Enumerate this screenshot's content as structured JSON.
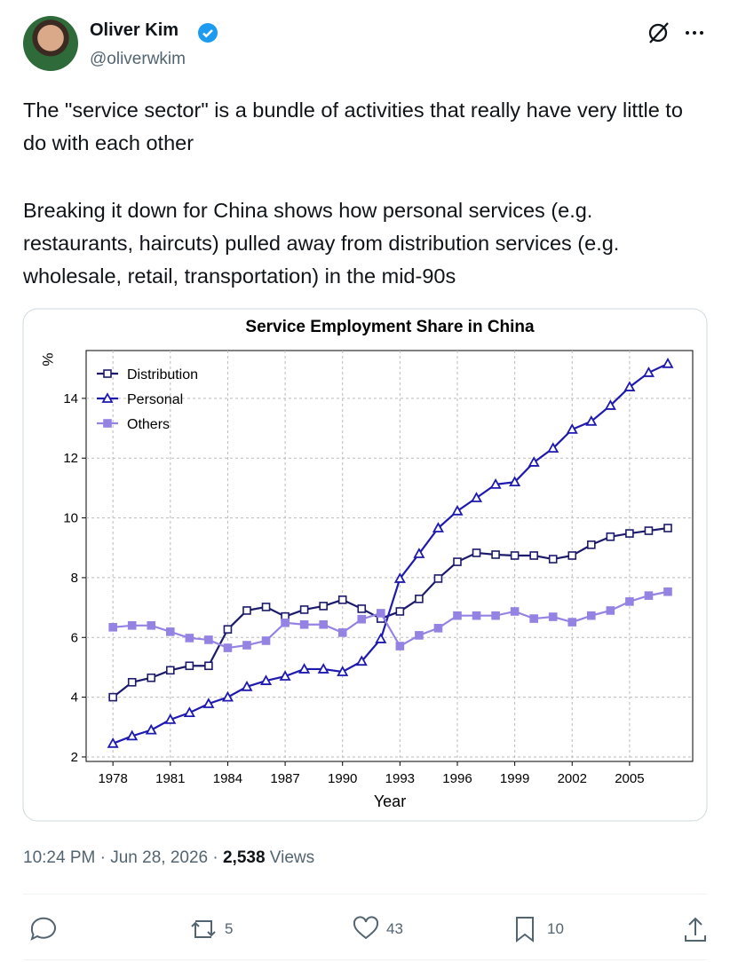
{
  "author": {
    "name": "Oliver Kim",
    "handle": "@oliverwkim"
  },
  "post": {
    "paragraphs": [
      "The \"service sector\" is a bundle of activities that really have very little to do with each other",
      "Breaking it down for China shows how personal services (e.g. restaurants, haircuts) pulled away from distribution services (e.g. wholesale, retail, transportation) in the mid-90s"
    ]
  },
  "meta": {
    "timestamp": "10:24 PM · Jun 28, 2026 ·",
    "views_count": "2,538",
    "views_label": "Views"
  },
  "actions": {
    "reposts": 5,
    "likes": 43,
    "bookmarks": 10
  },
  "chart_data": {
    "type": "line",
    "title": "Service Employment Share in China",
    "xlabel": "Year",
    "ylabel": "%",
    "x": [
      1978,
      1979,
      1980,
      1981,
      1982,
      1983,
      1984,
      1985,
      1986,
      1987,
      1988,
      1989,
      1990,
      1991,
      1992,
      1993,
      1994,
      1995,
      1996,
      1997,
      1998,
      1999,
      2000,
      2001,
      2002,
      2003,
      2004,
      2005,
      2006,
      2007
    ],
    "series": [
      {
        "name": "Distribution",
        "color": "#1b1a6b",
        "marker": "square-open",
        "values": [
          4.0,
          4.5,
          4.65,
          4.9,
          5.05,
          5.05,
          6.27,
          6.9,
          7.02,
          6.7,
          6.93,
          7.05,
          7.26,
          6.96,
          6.63,
          6.87,
          7.29,
          7.97,
          8.53,
          8.83,
          8.77,
          8.74,
          8.74,
          8.62,
          8.74,
          9.1,
          9.37,
          9.48,
          9.57,
          9.66
        ]
      },
      {
        "name": "Personal",
        "color": "#1e1ab0",
        "marker": "triangle-open",
        "values": [
          2.45,
          2.7,
          2.9,
          3.25,
          3.48,
          3.78,
          4.0,
          4.35,
          4.55,
          4.7,
          4.94,
          4.94,
          4.85,
          5.2,
          5.95,
          7.97,
          8.8,
          9.66,
          10.23,
          10.67,
          11.12,
          11.2,
          11.86,
          12.33,
          12.96,
          13.23,
          13.76,
          14.38,
          14.86,
          15.16
        ]
      },
      {
        "name": "Others",
        "color": "#9583e3",
        "marker": "square",
        "values": [
          6.34,
          6.4,
          6.4,
          6.19,
          5.98,
          5.92,
          5.65,
          5.74,
          5.89,
          6.49,
          6.43,
          6.43,
          6.16,
          6.61,
          6.81,
          5.71,
          6.07,
          6.31,
          6.73,
          6.73,
          6.73,
          6.87,
          6.63,
          6.69,
          6.51,
          6.73,
          6.9,
          7.2,
          7.4,
          7.53
        ]
      }
    ],
    "xlim": [
      1976.6,
      2008.3
    ],
    "ylim": [
      1.85,
      15.6
    ],
    "xticks": [
      1978,
      1981,
      1984,
      1987,
      1990,
      1993,
      1996,
      1999,
      2002,
      2005
    ],
    "yticks": [
      2,
      4,
      6,
      8,
      10,
      12,
      14
    ],
    "grid": true,
    "legend": "upper-left"
  }
}
